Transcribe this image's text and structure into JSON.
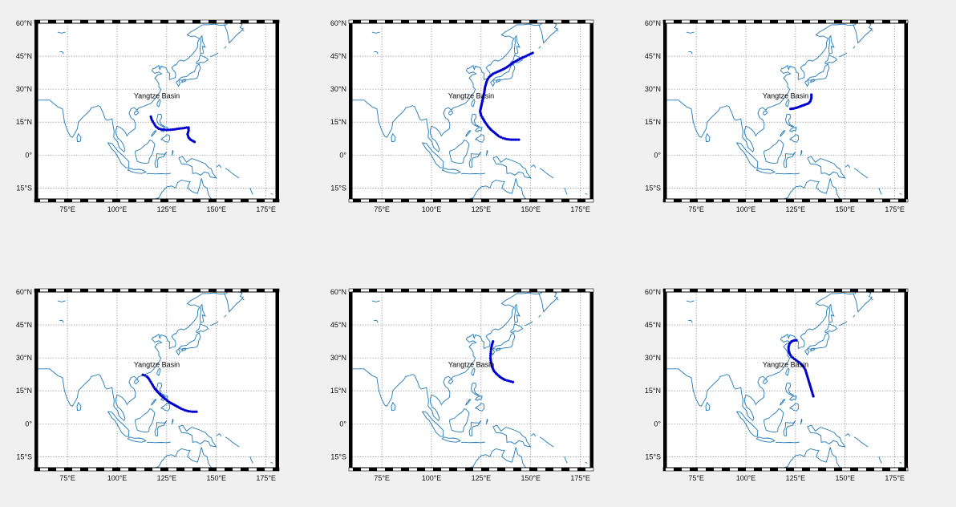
{
  "figure": {
    "background": "#f0f0f0",
    "annotation_text": "Yangtze Basin",
    "colors": {
      "coast": "#1f77b4",
      "track": "#0000cc",
      "frame": "#000000",
      "grid": "#555555"
    }
  },
  "chart_data": [
    {
      "type": "scatter",
      "projection": "equirectangular map",
      "xlim": [
        60,
        180
      ],
      "ylim": [
        -20,
        60
      ],
      "xticks": [
        75,
        100,
        125,
        150,
        175
      ],
      "xtick_labels": [
        "75°E",
        "100°E",
        "125°E",
        "150°E",
        "175°E"
      ],
      "yticks": [
        -15,
        0,
        15,
        30,
        45,
        60
      ],
      "ytick_labels": [
        "15°S",
        "0°",
        "15°N",
        "30°N",
        "45°N",
        "60°N"
      ],
      "grid": true,
      "annotation": {
        "text": "Yangtze Basin",
        "lon": 120,
        "lat": 27
      },
      "track": [
        [
          139,
          6
        ],
        [
          137,
          7
        ],
        [
          136,
          8
        ],
        [
          135.5,
          9.5
        ],
        [
          136,
          11
        ],
        [
          136,
          12.5
        ],
        [
          135,
          12.5
        ],
        [
          133,
          12.2
        ],
        [
          131,
          12
        ],
        [
          129,
          11.7
        ],
        [
          127,
          11.5
        ],
        [
          125,
          11.4
        ],
        [
          123,
          11.6
        ],
        [
          121,
          12
        ],
        [
          119.5,
          13
        ],
        [
          118.5,
          14.5
        ],
        [
          117.5,
          16
        ],
        [
          117,
          17.5
        ]
      ]
    },
    {
      "type": "scatter",
      "projection": "equirectangular map",
      "xlim": [
        60,
        180
      ],
      "ylim": [
        -20,
        60
      ],
      "xticks": [
        75,
        100,
        125,
        150,
        175
      ],
      "xtick_labels": [
        "75°E",
        "100°E",
        "125°E",
        "150°E",
        "175°E"
      ],
      "yticks": [
        -15,
        0,
        15,
        30,
        45,
        60
      ],
      "ytick_labels": [
        "15°S",
        "0°",
        "15°N",
        "30°N",
        "45°N",
        "60°N"
      ],
      "grid": true,
      "annotation": {
        "text": "Yangtze Basin",
        "lon": 120,
        "lat": 27
      },
      "track": [
        [
          144,
          7
        ],
        [
          142,
          7
        ],
        [
          140,
          7
        ],
        [
          138,
          7.2
        ],
        [
          136,
          7.7
        ],
        [
          134,
          8.5
        ],
        [
          132,
          10
        ],
        [
          130,
          11.5
        ],
        [
          128.5,
          13
        ],
        [
          127,
          15
        ],
        [
          126,
          16.5
        ],
        [
          125,
          18
        ],
        [
          124.5,
          20
        ],
        [
          125,
          22
        ],
        [
          125.5,
          24
        ],
        [
          126,
          26
        ],
        [
          126.5,
          28
        ],
        [
          127,
          31
        ],
        [
          128,
          34
        ],
        [
          129,
          35.5
        ],
        [
          131,
          37
        ],
        [
          133.5,
          38
        ],
        [
          136,
          39
        ],
        [
          138,
          40
        ],
        [
          139.5,
          41
        ],
        [
          141,
          42
        ],
        [
          143,
          43
        ],
        [
          145,
          44
        ],
        [
          147.5,
          45
        ],
        [
          151,
          46.5
        ]
      ]
    },
    {
      "type": "scatter",
      "projection": "equirectangular map",
      "xlim": [
        60,
        180
      ],
      "ylim": [
        -20,
        60
      ],
      "xticks": [
        75,
        100,
        125,
        150,
        175
      ],
      "xtick_labels": [
        "75°E",
        "100°E",
        "125°E",
        "150°E",
        "175°E"
      ],
      "yticks": [
        -15,
        0,
        15,
        30,
        45,
        60
      ],
      "ytick_labels": [
        "15°S",
        "0°",
        "15°N",
        "30°N",
        "45°N",
        "60°N"
      ],
      "grid": true,
      "annotation": {
        "text": "Yangtze Basin",
        "lon": 120,
        "lat": 27
      },
      "track": [
        [
          133,
          27.5
        ],
        [
          133,
          26
        ],
        [
          132.5,
          24.5
        ],
        [
          131.5,
          23.5
        ],
        [
          130,
          23
        ],
        [
          128.5,
          22.5
        ],
        [
          127,
          22
        ],
        [
          125.5,
          21.5
        ],
        [
          124,
          21.2
        ],
        [
          122.5,
          21
        ]
      ]
    },
    {
      "type": "scatter",
      "projection": "equirectangular map",
      "xlim": [
        60,
        180
      ],
      "ylim": [
        -20,
        60
      ],
      "xticks": [
        75,
        100,
        125,
        150,
        175
      ],
      "xtick_labels": [
        "75°E",
        "100°E",
        "125°E",
        "150°E",
        "175°E"
      ],
      "yticks": [
        -15,
        0,
        15,
        30,
        45,
        60
      ],
      "ytick_labels": [
        "15°S",
        "0°",
        "15°N",
        "30°N",
        "45°N",
        "60°N"
      ],
      "grid": true,
      "annotation": {
        "text": "Yangtze Basin",
        "lon": 120,
        "lat": 27
      },
      "track": [
        [
          140,
          5.5
        ],
        [
          138,
          5.5
        ],
        [
          136,
          5.7
        ],
        [
          134,
          6.2
        ],
        [
          132,
          7
        ],
        [
          130,
          8
        ],
        [
          128,
          9
        ],
        [
          126,
          10
        ],
        [
          124,
          11.5
        ],
        [
          122,
          13
        ],
        [
          120.5,
          14.5
        ],
        [
          119,
          16
        ],
        [
          118,
          17.5
        ],
        [
          117,
          19
        ],
        [
          116,
          20.5
        ],
        [
          115,
          21.5
        ],
        [
          114,
          22
        ],
        [
          113,
          22.3
        ]
      ]
    },
    {
      "type": "scatter",
      "projection": "equirectangular map",
      "xlim": [
        60,
        180
      ],
      "ylim": [
        -20,
        60
      ],
      "xticks": [
        75,
        100,
        125,
        150,
        175
      ],
      "xtick_labels": [
        "75°E",
        "100°E",
        "125°E",
        "150°E",
        "175°E"
      ],
      "yticks": [
        -15,
        0,
        15,
        30,
        45,
        60
      ],
      "ytick_labels": [
        "15°S",
        "0°",
        "15°N",
        "30°N",
        "45°N",
        "60°N"
      ],
      "grid": true,
      "annotation": {
        "text": "Yangtze Basin",
        "lon": 120,
        "lat": 27
      },
      "track": [
        [
          141,
          19
        ],
        [
          139,
          19.5
        ],
        [
          137,
          20
        ],
        [
          135,
          21
        ],
        [
          133,
          22.5
        ],
        [
          131.5,
          24
        ],
        [
          130.5,
          26
        ],
        [
          130,
          28
        ],
        [
          129.7,
          30
        ],
        [
          129.8,
          32
        ],
        [
          130,
          34
        ],
        [
          130.5,
          36
        ],
        [
          131,
          37.5
        ]
      ]
    },
    {
      "type": "scatter",
      "projection": "equirectangular map",
      "xlim": [
        60,
        180
      ],
      "ylim": [
        -20,
        60
      ],
      "xticks": [
        75,
        100,
        125,
        150,
        175
      ],
      "xtick_labels": [
        "75°E",
        "100°E",
        "125°E",
        "150°E",
        "175°E"
      ],
      "yticks": [
        -15,
        0,
        15,
        30,
        45,
        60
      ],
      "ytick_labels": [
        "15°S",
        "0°",
        "15°N",
        "30°N",
        "45°N",
        "60°N"
      ],
      "grid": true,
      "annotation": {
        "text": "Yangtze Basin",
        "lon": 120,
        "lat": 27
      },
      "track": [
        [
          134,
          12.5
        ],
        [
          133.5,
          14
        ],
        [
          133,
          15.5
        ],
        [
          132.5,
          17
        ],
        [
          132,
          18.5
        ],
        [
          131.5,
          20
        ],
        [
          131,
          21.5
        ],
        [
          130.5,
          23
        ],
        [
          130,
          24.5
        ],
        [
          129,
          26
        ],
        [
          127.5,
          27.5
        ],
        [
          126,
          28.5
        ],
        [
          124.5,
          29.5
        ],
        [
          123,
          30.5
        ],
        [
          122,
          32
        ],
        [
          121.5,
          33.5
        ],
        [
          121.5,
          35
        ],
        [
          122,
          36.5
        ],
        [
          123,
          37.5
        ],
        [
          124.5,
          38
        ],
        [
          125.5,
          38
        ]
      ]
    }
  ]
}
